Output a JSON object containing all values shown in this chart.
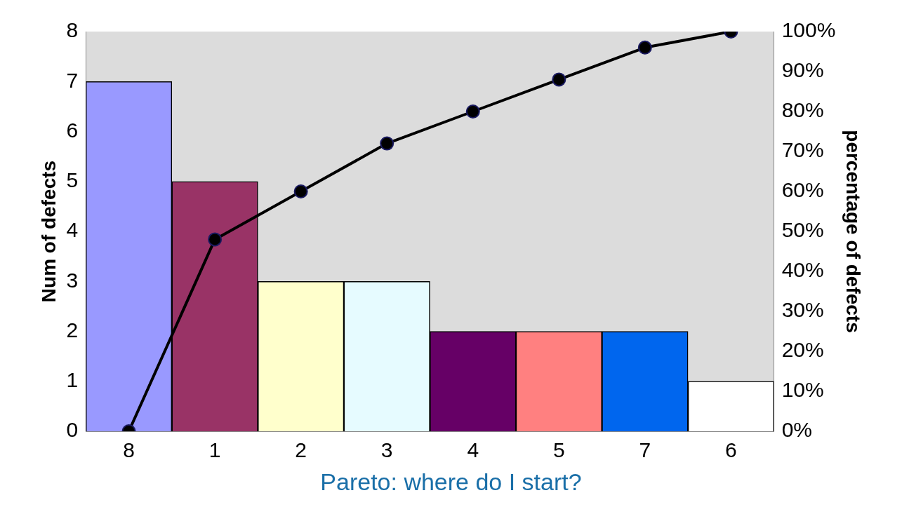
{
  "chart_data": {
    "type": "bar",
    "categories": [
      "8",
      "1",
      "2",
      "3",
      "4",
      "5",
      "7",
      "6"
    ],
    "series": [
      {
        "colors": [
          "#9999ff",
          "#993366",
          "#ffffcc",
          "#e6fbff",
          "#660066",
          "#ff8080",
          "#0066ee",
          "#ffffff"
        ],
        "values": [
          7,
          5,
          3,
          3,
          2,
          2,
          2,
          1
        ]
      },
      {
        "type": "line",
        "axis": "y2",
        "color": "#000000",
        "values": [
          0,
          48,
          60,
          72,
          80,
          88,
          96,
          100
        ]
      }
    ],
    "ylabel": "Num of defects",
    "y2label": "percentage of defects",
    "ylim": [
      0,
      8
    ],
    "yticks": [
      0,
      1,
      2,
      3,
      4,
      5,
      6,
      7,
      8
    ],
    "y2lim": [
      0,
      100
    ],
    "y2ticks": [
      {
        "value": 0,
        "label": "0%"
      },
      {
        "value": 10,
        "label": "10%"
      },
      {
        "value": 20,
        "label": "20%"
      },
      {
        "value": 30,
        "label": "30%"
      },
      {
        "value": 40,
        "label": "40%"
      },
      {
        "value": 50,
        "label": "50%"
      },
      {
        "value": 60,
        "label": "60%"
      },
      {
        "value": 70,
        "label": "70%"
      },
      {
        "value": 80,
        "label": "80%"
      },
      {
        "value": 90,
        "label": "90%"
      },
      {
        "value": 100,
        "label": "100%"
      }
    ],
    "marker": "circle",
    "grid": false,
    "legend": false,
    "annotations": [
      "Pareto: where do I start?"
    ]
  }
}
